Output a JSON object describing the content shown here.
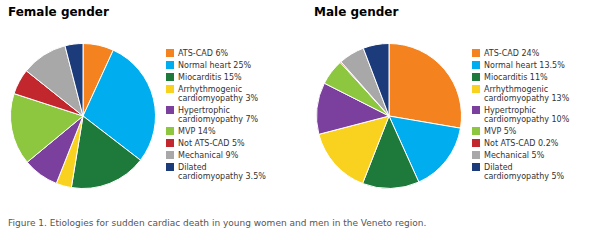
{
  "chart_data": [
    {
      "type": "pie",
      "title": "Female gender",
      "categories": [
        "ATS-CAD 6%",
        "Normal heart 25%",
        "Miocarditis 15%",
        "Arrhythmogenic\ncardiomyopathy 3%",
        "Hypertrophic\ncardiomyopathy 7%",
        "MVP 14%",
        "Not ATS-CAD 5%",
        "Mechanical 9%",
        "Dilated\ncardiomyopathy 3.5%"
      ],
      "values": [
        6,
        25,
        15,
        3,
        7,
        14,
        5,
        9,
        3.5
      ],
      "colors": [
        "#F4831F",
        "#00AEEF",
        "#1D7A3A",
        "#F8D21E",
        "#7B3F9E",
        "#8DC63F",
        "#C1272D",
        "#A8A8A8",
        "#1B3B7A"
      ],
      "legend": "right"
    },
    {
      "type": "pie",
      "title": "Male gender",
      "categories": [
        "ATS-CAD 24%",
        "Normal heart 13.5%",
        "Miocarditis 11%",
        "Arrhythmogenic\ncardiomyopathy 13%",
        "Hypertrophic\ncardiomyopathy 10%",
        "MVP 5%",
        "Not ATS-CAD 0.2%",
        "Mechanical 5%",
        "Dilated\ncardiomyopathy 5%"
      ],
      "values": [
        24,
        13.5,
        11,
        13,
        10,
        5,
        0.2,
        5,
        5
      ],
      "colors": [
        "#F4831F",
        "#00AEEF",
        "#1D7A3A",
        "#F8D21E",
        "#7B3F9E",
        "#8DC63F",
        "#C1272D",
        "#A8A8A8",
        "#1B3B7A"
      ],
      "legend": "right"
    }
  ],
  "caption": "Figure 1. Etiologies for sudden cardiac death in young women and men in the Veneto region."
}
